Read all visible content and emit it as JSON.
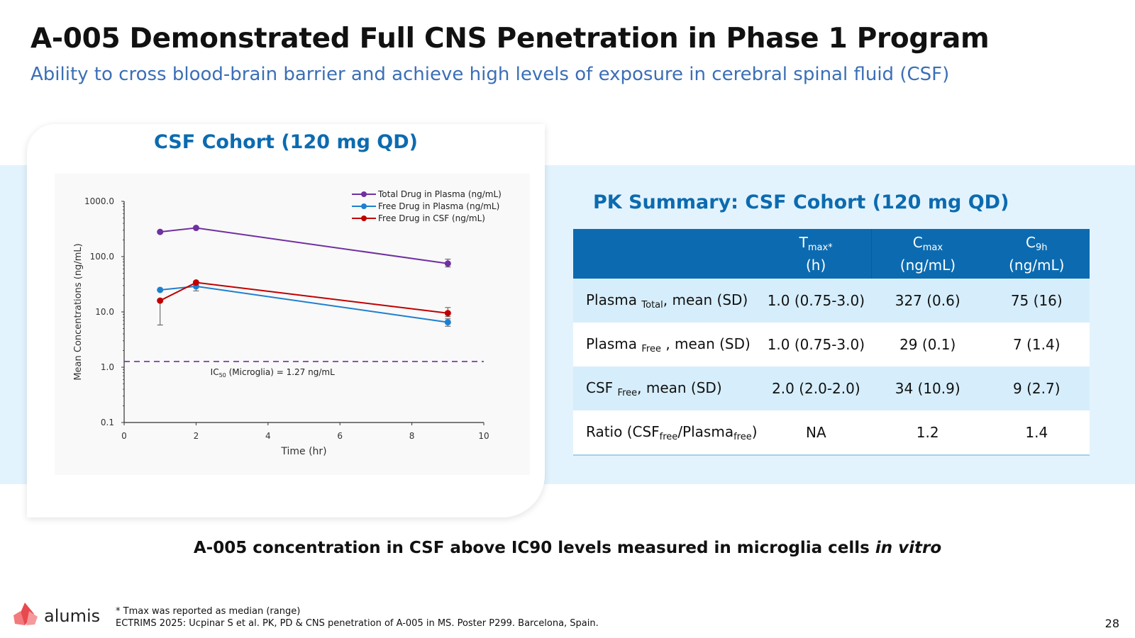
{
  "header": {
    "title": "A-005 Demonstrated Full CNS Penetration in Phase 1 Program",
    "subtitle": "Ability to cross blood-brain barrier and achieve high levels of exposure in cerebral spinal fluid (CSF)"
  },
  "chart_panel_title": "CSF Cohort (120 mg QD)",
  "chart_data": {
    "type": "line",
    "title": "",
    "xlabel": "Time (hr)",
    "ylabel": "Mean Concentrations (ng/mL)",
    "yscale": "log",
    "xlim": [
      0,
      10
    ],
    "ylim": [
      0.1,
      1000
    ],
    "xticks": [
      "0",
      "2",
      "4",
      "6",
      "8",
      "10"
    ],
    "yticks": [
      "0.1",
      "1.0",
      "10.0",
      "100.0",
      "1000.0"
    ],
    "legend_position": "top-right",
    "series": [
      {
        "name": "Total Drug in Plasma (ng/mL)",
        "color": "#7030a0",
        "x": [
          1,
          2,
          9
        ],
        "y": [
          280,
          330,
          75
        ],
        "err_low": [
          null,
          null,
          65
        ],
        "err_high": [
          null,
          null,
          90
        ]
      },
      {
        "name": "Free Drug in Plasma (ng/mL)",
        "color": "#1f7fcf",
        "x": [
          1,
          2,
          9
        ],
        "y": [
          25,
          29,
          6.5
        ],
        "err_low": [
          null,
          24,
          5.5
        ],
        "err_high": [
          null,
          null,
          7.5
        ]
      },
      {
        "name": "Free Drug in CSF (ng/mL)",
        "color": "#c00000",
        "x": [
          1,
          2,
          9
        ],
        "y": [
          16,
          34,
          9.5
        ],
        "err_low": [
          5.8,
          null,
          8.2
        ],
        "err_high": [
          null,
          null,
          12
        ]
      }
    ],
    "reference_line": {
      "y": 1.27,
      "label_prefix": "IC",
      "label_subscript": "50",
      "label_suffix": " (Microglia) = 1.27 ng/mL",
      "color": "#7030a0"
    }
  },
  "pk_table": {
    "title": "PK Summary: CSF Cohort (120 mg QD)",
    "headers": [
      {
        "main": "T",
        "sub": "max*",
        "unit": "(h)"
      },
      {
        "main": "C",
        "sub": "max",
        "unit": "(ng/mL)"
      },
      {
        "main": "C",
        "sub": "9h",
        "unit": "(ng/mL)"
      }
    ],
    "rows": [
      {
        "pre": "Plasma ",
        "sub": "Total",
        "post": ", mean (SD)",
        "values": [
          "1.0 (0.75-3.0)",
          "327 (0.6)",
          "75 (16)"
        ]
      },
      {
        "pre": "Plasma ",
        "sub": "Free",
        "post": " , mean (SD)",
        "values": [
          "1.0 (0.75-3.0)",
          "29 (0.1)",
          "7 (1.4)"
        ]
      },
      {
        "pre": "CSF ",
        "sub": "Free",
        "post": ", mean (SD)",
        "values": [
          "2.0 (2.0-2.0)",
          "34 (10.9)",
          "9 (2.7)"
        ]
      },
      {
        "pre": "Ratio (CSF",
        "sub": "free",
        "mid": "/Plasma",
        "sub2": "free",
        "post": ")",
        "values": [
          "NA",
          "1.2",
          "1.4"
        ]
      }
    ]
  },
  "callout": {
    "text": "A-005 concentration in CSF above IC90 levels measured in microglia cells ",
    "italic": "in vitro"
  },
  "footer": {
    "logo_text": "alumis",
    "footnote_1": "* Tmax was reported as median (range)",
    "footnote_2": "ECTRIMS 2025: Ucpinar S et al. PK, PD & CNS penetration of A-005 in MS. Poster P299. Barcelona, Spain.",
    "page_number": "28"
  },
  "colors": {
    "brand_blue": "#0c6bb0",
    "light_band": "#e3f3fd",
    "subtitle_blue": "#3b6fb6",
    "logo_red": "#e8494f"
  }
}
